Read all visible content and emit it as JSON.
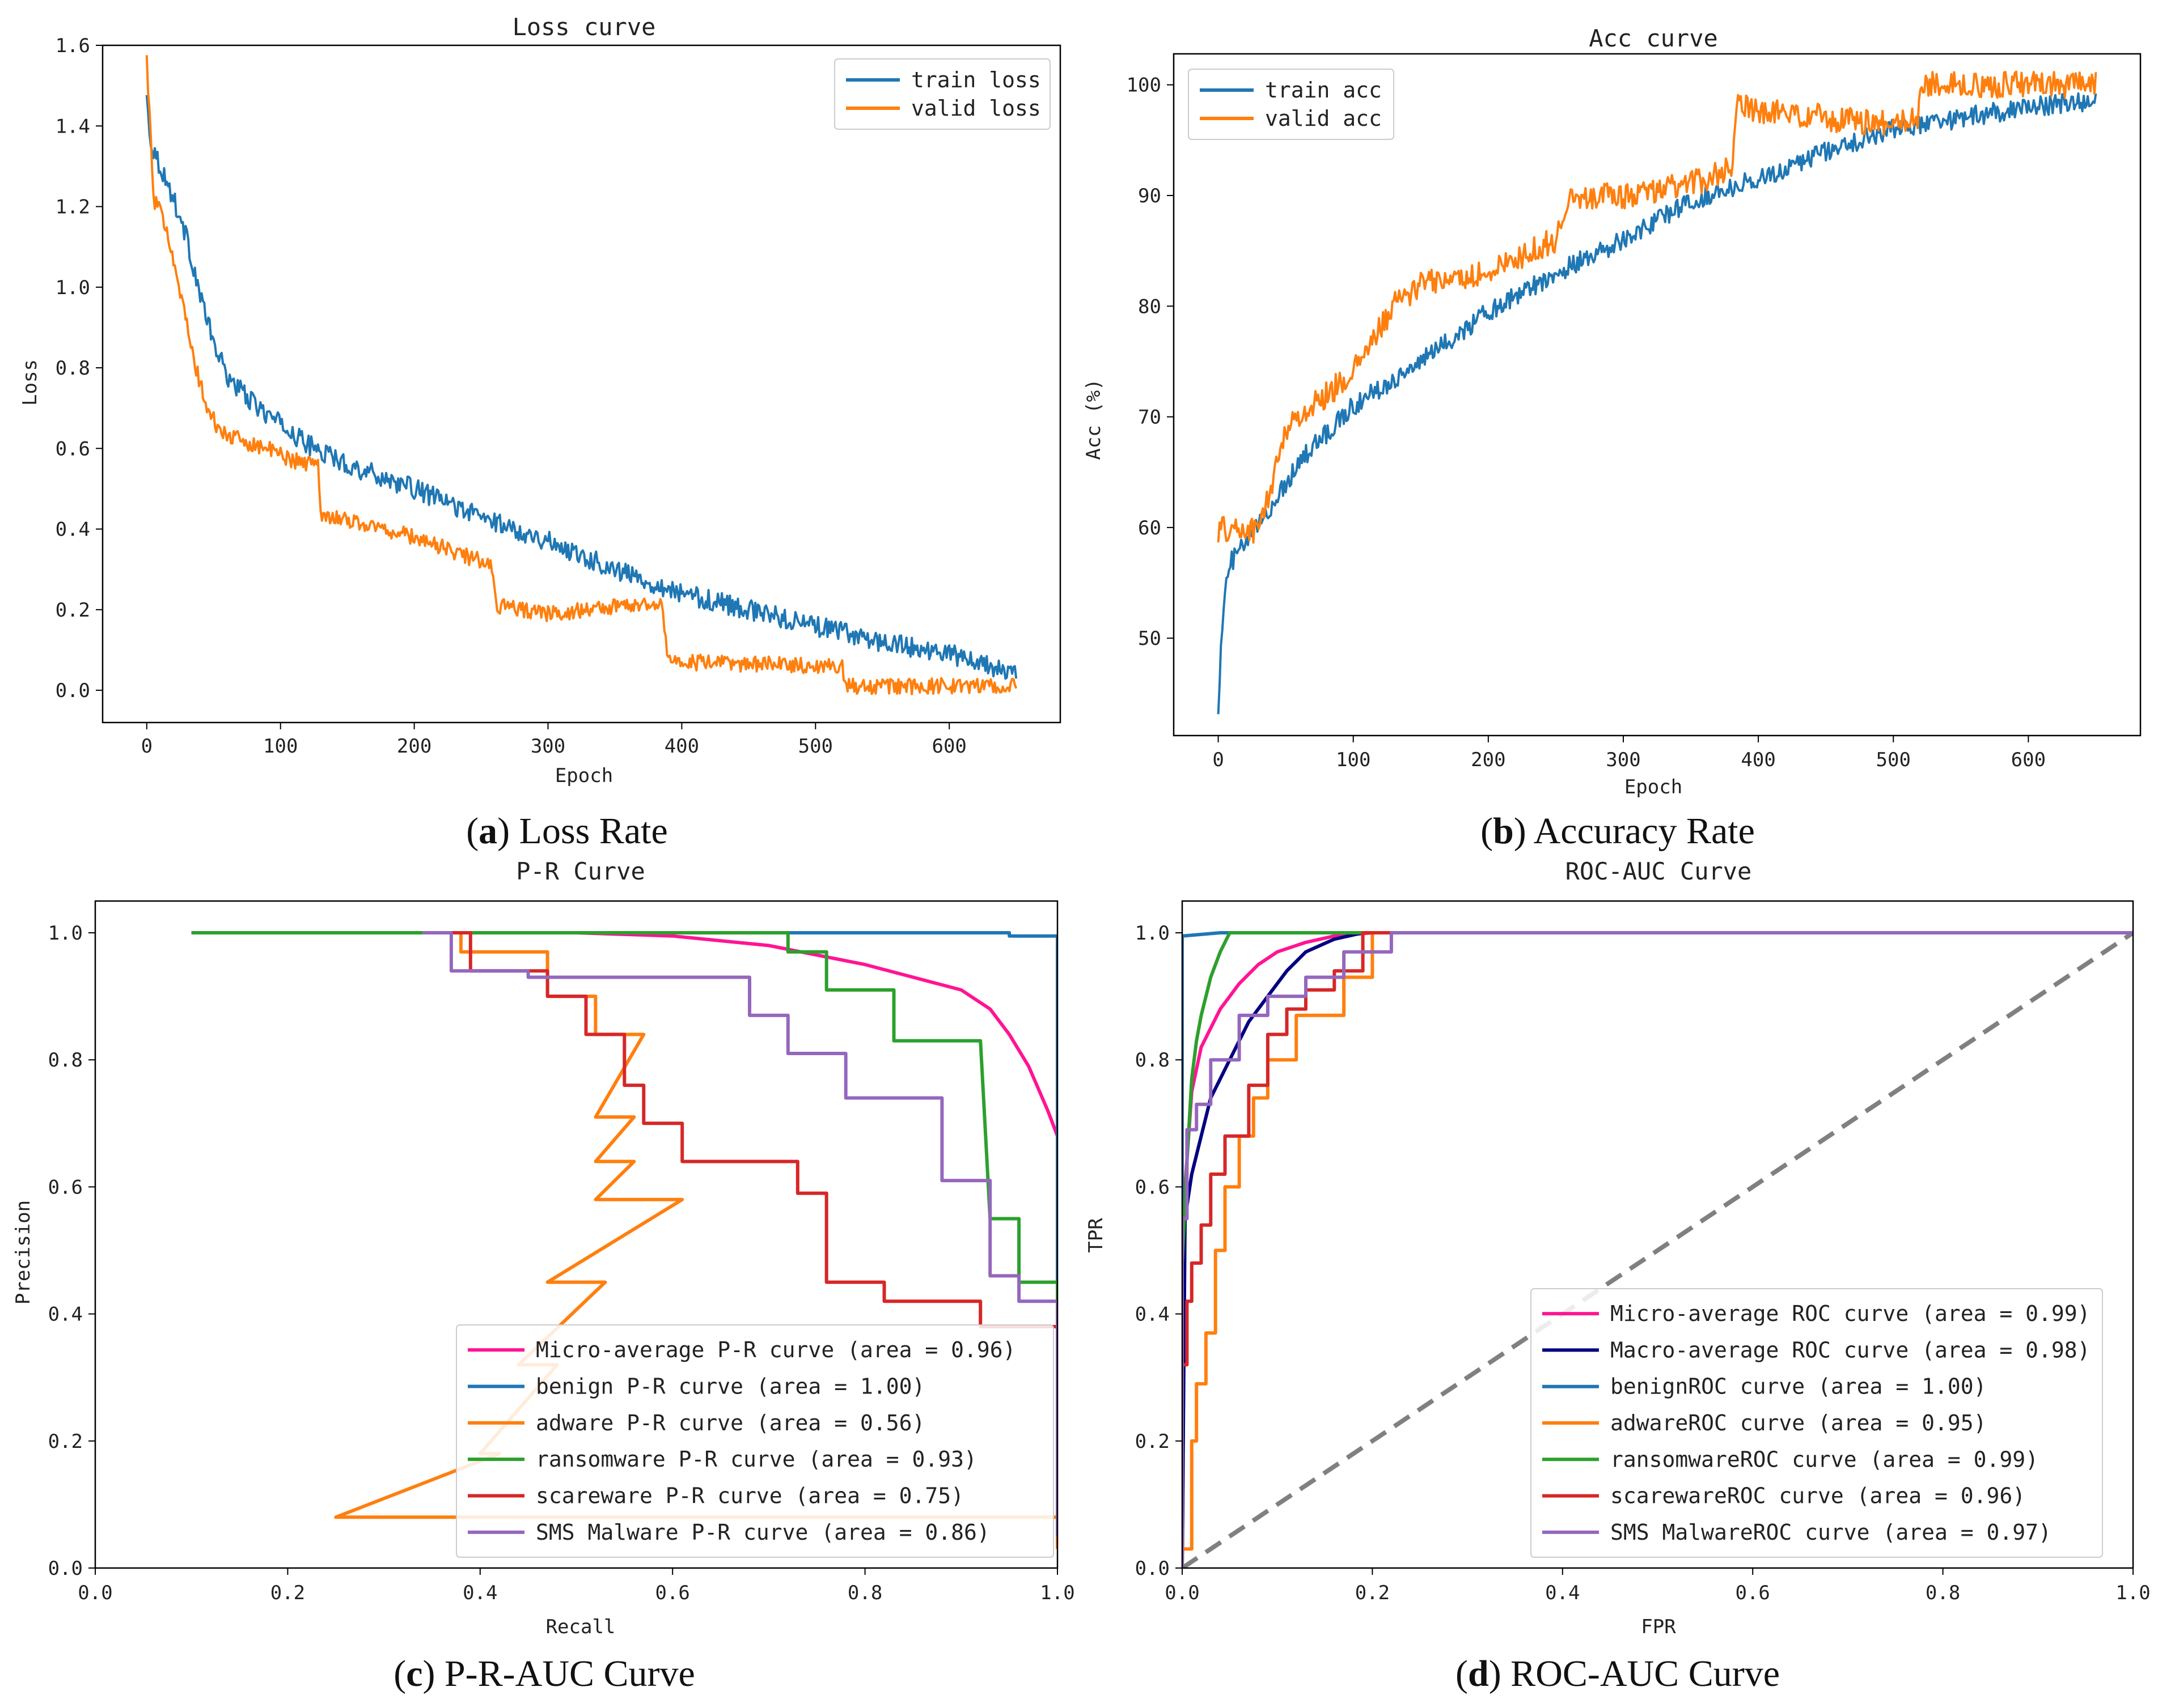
{
  "figure": {
    "captions": [
      {
        "id": "a",
        "text": "Loss Rate"
      },
      {
        "id": "b",
        "text": "Accuracy Rate"
      },
      {
        "id": "c",
        "text": "P-R-AUC Curve"
      },
      {
        "id": "d",
        "text": "ROC-AUC Curve"
      }
    ]
  },
  "chart_data": [
    {
      "id": "loss",
      "type": "line",
      "title": "Loss curve",
      "xlabel": "Epoch",
      "ylabel": "Loss",
      "xlim": [
        -33,
        683
      ],
      "ylim": [
        -0.08,
        1.6
      ],
      "xticks": [
        0,
        100,
        200,
        300,
        400,
        500,
        600
      ],
      "yticks": [
        0.0,
        0.2,
        0.4,
        0.6,
        0.8,
        1.0,
        1.2,
        1.4,
        1.6
      ],
      "ytick_labels": [
        "0.0",
        "0.2",
        "0.4",
        "0.6",
        "0.8",
        "1.0",
        "1.2",
        "1.4",
        "1.6"
      ],
      "legend_position": "top-right",
      "series": [
        {
          "name": "train loss",
          "color": "#1f77b4",
          "noise": 0.025,
          "x": [
            0,
            3,
            10,
            20,
            30,
            40,
            50,
            60,
            80,
            100,
            120,
            150,
            200,
            250,
            300,
            350,
            400,
            450,
            500,
            550,
            600,
            650
          ],
          "y": [
            1.47,
            1.36,
            1.3,
            1.22,
            1.12,
            0.98,
            0.86,
            0.78,
            0.71,
            0.66,
            0.61,
            0.56,
            0.5,
            0.43,
            0.37,
            0.3,
            0.24,
            0.2,
            0.16,
            0.12,
            0.09,
            0.04
          ]
        },
        {
          "name": "valid loss",
          "color": "#ff7f0e",
          "noise": 0.02,
          "x": [
            0,
            5,
            15,
            25,
            35,
            45,
            55,
            70,
            90,
            110,
            128,
            130,
            200,
            258,
            262,
            300,
            385,
            390,
            520,
            522,
            650
          ],
          "y": [
            1.57,
            1.22,
            1.15,
            0.99,
            0.82,
            0.7,
            0.64,
            0.62,
            0.6,
            0.57,
            0.56,
            0.44,
            0.38,
            0.31,
            0.21,
            0.19,
            0.22,
            0.07,
            0.06,
            0.01,
            0.01
          ]
        }
      ]
    },
    {
      "id": "acc",
      "type": "line",
      "title": "Acc curve",
      "xlabel": "Epoch",
      "ylabel": "Acc (%)",
      "xlim": [
        -33,
        683
      ],
      "ylim": [
        41.2,
        102.8
      ],
      "xticks": [
        0,
        100,
        200,
        300,
        400,
        500,
        600
      ],
      "yticks": [
        50,
        60,
        70,
        80,
        90,
        100
      ],
      "ytick_labels": [
        "50",
        "60",
        "70",
        "80",
        "90",
        "100"
      ],
      "legend_position": "top-left",
      "series": [
        {
          "name": "train acc",
          "color": "#1f77b4",
          "noise": 0.9,
          "x": [
            0,
            3,
            6,
            10,
            20,
            40,
            60,
            100,
            150,
            200,
            250,
            300,
            350,
            400,
            450,
            500,
            550,
            600,
            650
          ],
          "y": [
            44,
            51,
            55,
            57,
            58.5,
            62,
            66,
            71,
            75,
            79.5,
            83,
            86,
            89.5,
            91.5,
            94,
            96,
            97,
            98,
            98.5
          ]
        },
        {
          "name": "valid acc",
          "color": "#ff7f0e",
          "noise": 1.2,
          "x": [
            0,
            30,
            40,
            50,
            100,
            130,
            150,
            200,
            250,
            260,
            300,
            350,
            380,
            385,
            450,
            500,
            518,
            520,
            650
          ],
          "y": [
            59.8,
            59.8,
            64,
            69,
            74,
            80,
            82,
            83,
            86,
            90,
            90,
            91,
            92.5,
            98,
            97,
            96.5,
            97,
            100,
            100
          ]
        }
      ]
    },
    {
      "id": "pr",
      "type": "line",
      "title": "P-R Curve",
      "xlabel": "Recall",
      "ylabel": "Precision",
      "xlim": [
        0.0,
        1.0
      ],
      "ylim": [
        0.0,
        1.05
      ],
      "xticks": [
        0.0,
        0.2,
        0.4,
        0.6,
        0.8,
        1.0
      ],
      "xtick_labels": [
        "0.0",
        "0.2",
        "0.4",
        "0.6",
        "0.8",
        "1.0"
      ],
      "yticks": [
        0.0,
        0.2,
        0.4,
        0.6,
        0.8,
        1.0
      ],
      "ytick_labels": [
        "0.0",
        "0.2",
        "0.4",
        "0.6",
        "0.8",
        "1.0"
      ],
      "legend_position": "lower-right",
      "series": [
        {
          "name": "Micro-average P-R curve (area = 0.96)",
          "color": "#ff1493",
          "x": [
            0.1,
            0.3,
            0.5,
            0.6,
            0.7,
            0.75,
            0.8,
            0.85,
            0.9,
            0.93,
            0.95,
            0.97,
            0.99,
            1.0,
            1.0
          ],
          "y": [
            1.0,
            1.0,
            1.0,
            0.995,
            0.98,
            0.965,
            0.95,
            0.93,
            0.91,
            0.88,
            0.84,
            0.79,
            0.72,
            0.68,
            0.3
          ]
        },
        {
          "name": "benign P-R curve (area = 1.00)",
          "color": "#1f77b4",
          "x": [
            0.1,
            0.95,
            0.95,
            1.0,
            1.0
          ],
          "y": [
            1.0,
            1.0,
            0.995,
            0.995,
            0.05
          ]
        },
        {
          "name": "adware P-R curve (area = 0.56)",
          "color": "#ff7f0e",
          "x": [
            0.35,
            0.38,
            0.38,
            0.47,
            0.47,
            0.52,
            0.52,
            0.57,
            0.52,
            0.56,
            0.52,
            0.56,
            0.52,
            0.61,
            0.47,
            0.53,
            0.44,
            0.48,
            0.4,
            0.42,
            0.25,
            1.0,
            1.0
          ],
          "y": [
            1.0,
            1.0,
            0.97,
            0.97,
            0.9,
            0.9,
            0.84,
            0.84,
            0.71,
            0.71,
            0.64,
            0.64,
            0.58,
            0.58,
            0.45,
            0.45,
            0.32,
            0.32,
            0.18,
            0.18,
            0.08,
            0.08,
            0.03
          ]
        },
        {
          "name": "ransomware P-R curve (area = 0.93)",
          "color": "#2ca02c",
          "x": [
            0.1,
            0.72,
            0.72,
            0.76,
            0.76,
            0.83,
            0.83,
            0.92,
            0.93,
            0.96,
            0.96,
            1.0,
            1.0
          ],
          "y": [
            1.0,
            1.0,
            0.97,
            0.97,
            0.91,
            0.91,
            0.83,
            0.83,
            0.55,
            0.55,
            0.45,
            0.45,
            0.05
          ]
        },
        {
          "name": "scareware P-R curve (area = 0.75)",
          "color": "#d62728",
          "x": [
            0.36,
            0.39,
            0.39,
            0.47,
            0.47,
            0.51,
            0.51,
            0.55,
            0.55,
            0.57,
            0.57,
            0.61,
            0.61,
            0.73,
            0.73,
            0.76,
            0.76,
            0.82,
            0.82,
            0.92,
            0.92,
            1.0,
            1.0
          ],
          "y": [
            1.0,
            1.0,
            0.94,
            0.94,
            0.9,
            0.9,
            0.84,
            0.84,
            0.76,
            0.76,
            0.7,
            0.7,
            0.64,
            0.64,
            0.59,
            0.59,
            0.45,
            0.45,
            0.42,
            0.42,
            0.38,
            0.38,
            0.32
          ]
        },
        {
          "name": "SMS Malware P-R curve (area = 0.86)",
          "color": "#9467bd",
          "x": [
            0.34,
            0.37,
            0.37,
            0.45,
            0.45,
            0.68,
            0.68,
            0.72,
            0.72,
            0.78,
            0.78,
            0.88,
            0.88,
            0.93,
            0.93,
            0.96,
            0.96,
            1.0,
            1.0
          ],
          "y": [
            1.0,
            1.0,
            0.94,
            0.94,
            0.93,
            0.93,
            0.87,
            0.87,
            0.81,
            0.81,
            0.74,
            0.74,
            0.61,
            0.61,
            0.46,
            0.46,
            0.42,
            0.42,
            0.05
          ]
        }
      ]
    },
    {
      "id": "roc",
      "type": "line",
      "title": "ROC-AUC Curve",
      "xlabel": "FPR",
      "ylabel": "TPR",
      "xlim": [
        0.0,
        1.0
      ],
      "ylim": [
        0.0,
        1.05
      ],
      "xticks": [
        0.0,
        0.2,
        0.4,
        0.6,
        0.8,
        1.0
      ],
      "xtick_labels": [
        "0.0",
        "0.2",
        "0.4",
        "0.6",
        "0.8",
        "1.0"
      ],
      "yticks": [
        0.0,
        0.2,
        0.4,
        0.6,
        0.8,
        1.0
      ],
      "ytick_labels": [
        "0.0",
        "0.2",
        "0.4",
        "0.6",
        "0.8",
        "1.0"
      ],
      "legend_position": "lower-right",
      "diagonal": {
        "x": [
          0,
          1
        ],
        "y": [
          0,
          1
        ],
        "color": "#808080"
      },
      "series": [
        {
          "name": "Micro-average ROC curve (area = 0.99)",
          "color": "#ff1493",
          "x": [
            0,
            0.003,
            0.01,
            0.02,
            0.04,
            0.06,
            0.08,
            0.1,
            0.13,
            0.16,
            0.2,
            1.0
          ],
          "y": [
            0,
            0.6,
            0.75,
            0.82,
            0.88,
            0.92,
            0.95,
            0.97,
            0.985,
            0.995,
            1.0,
            1.0
          ]
        },
        {
          "name": "Macro-average ROC curve (area = 0.98)",
          "color": "#000080",
          "x": [
            0,
            0.003,
            0.01,
            0.02,
            0.03,
            0.05,
            0.07,
            0.09,
            0.11,
            0.13,
            0.16,
            0.19,
            1.0
          ],
          "y": [
            0,
            0.55,
            0.62,
            0.68,
            0.74,
            0.8,
            0.86,
            0.9,
            0.94,
            0.97,
            0.99,
            1.0,
            1.0
          ]
        },
        {
          "name": "benignROC curve (area = 1.00)",
          "color": "#1f77b4",
          "x": [
            0,
            0,
            0.04,
            1.0
          ],
          "y": [
            0,
            0.995,
            1.0,
            1.0
          ]
        },
        {
          "name": "adwareROC curve (area = 0.95)",
          "color": "#ff7f0e",
          "x": [
            0,
            0.01,
            0.01,
            0.015,
            0.015,
            0.025,
            0.025,
            0.035,
            0.035,
            0.045,
            0.045,
            0.06,
            0.06,
            0.075,
            0.075,
            0.09,
            0.09,
            0.12,
            0.12,
            0.17,
            0.17,
            0.2,
            0.2,
            1.0
          ],
          "y": [
            0.03,
            0.03,
            0.2,
            0.2,
            0.29,
            0.29,
            0.37,
            0.37,
            0.5,
            0.5,
            0.6,
            0.6,
            0.68,
            0.68,
            0.74,
            0.74,
            0.8,
            0.8,
            0.87,
            0.87,
            0.93,
            0.93,
            1.0,
            1.0
          ]
        },
        {
          "name": "ransomwareROC curve (area = 0.99)",
          "color": "#2ca02c",
          "x": [
            0,
            0,
            0.005,
            0.01,
            0.015,
            0.02,
            0.03,
            0.04,
            0.05,
            1.0
          ],
          "y": [
            0,
            0.48,
            0.64,
            0.77,
            0.83,
            0.87,
            0.93,
            0.97,
            1.0,
            1.0
          ]
        },
        {
          "name": "scarewareROC curve (area = 0.96)",
          "color": "#d62728",
          "x": [
            0,
            0,
            0.005,
            0.005,
            0.01,
            0.01,
            0.02,
            0.02,
            0.03,
            0.03,
            0.045,
            0.045,
            0.07,
            0.07,
            0.09,
            0.09,
            0.11,
            0.11,
            0.13,
            0.13,
            0.16,
            0.16,
            0.19,
            0.19,
            1.0
          ],
          "y": [
            0,
            0.32,
            0.32,
            0.42,
            0.42,
            0.48,
            0.48,
            0.54,
            0.54,
            0.62,
            0.62,
            0.68,
            0.68,
            0.76,
            0.76,
            0.84,
            0.84,
            0.88,
            0.88,
            0.91,
            0.91,
            0.94,
            0.94,
            1.0,
            1.0
          ]
        },
        {
          "name": "SMS MalwareROC curve (area = 0.97)",
          "color": "#9467bd",
          "x": [
            0,
            0,
            0.005,
            0.005,
            0.015,
            0.015,
            0.03,
            0.03,
            0.06,
            0.06,
            0.09,
            0.09,
            0.13,
            0.13,
            0.17,
            0.17,
            0.22,
            0.22,
            1.0
          ],
          "y": [
            0,
            0.55,
            0.55,
            0.69,
            0.69,
            0.73,
            0.73,
            0.8,
            0.8,
            0.87,
            0.87,
            0.9,
            0.9,
            0.93,
            0.93,
            0.97,
            0.97,
            1.0,
            1.0
          ]
        }
      ]
    }
  ]
}
